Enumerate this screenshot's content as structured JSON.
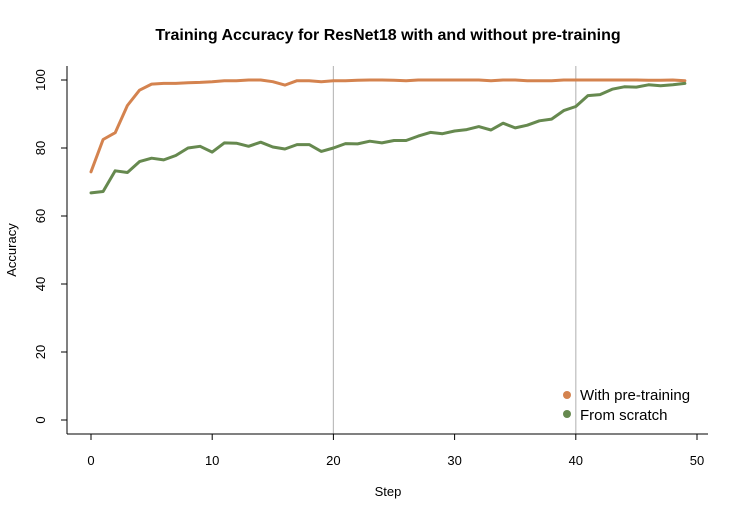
{
  "chart_data": {
    "type": "line",
    "title": "Training Accuracy for ResNet18 with and without pre-training",
    "xlabel": "Step",
    "ylabel": "Accuracy",
    "xlim": [
      0,
      50
    ],
    "ylim": [
      0,
      100
    ],
    "xticks": [
      0,
      10,
      20,
      30,
      40,
      50
    ],
    "yticks": [
      0,
      20,
      40,
      60,
      80,
      100
    ],
    "vertical_reference_lines": [
      20,
      40
    ],
    "grid": false,
    "legend_position": "bottom-right",
    "x": [
      0,
      1,
      2,
      3,
      4,
      5,
      6,
      7,
      8,
      9,
      10,
      11,
      12,
      13,
      14,
      15,
      16,
      17,
      18,
      19,
      20,
      21,
      22,
      23,
      24,
      25,
      26,
      27,
      28,
      29,
      30,
      31,
      32,
      33,
      34,
      35,
      36,
      37,
      38,
      39,
      40,
      41,
      42,
      43,
      44,
      45,
      46,
      47,
      48,
      49
    ],
    "series": [
      {
        "name": "With pre-training",
        "color": "#d4834f",
        "values": [
          73.0,
          82.5,
          84.5,
          92.5,
          97.0,
          98.8,
          99.0,
          99.0,
          99.2,
          99.3,
          99.5,
          99.8,
          99.8,
          100.0,
          100.0,
          99.5,
          98.5,
          99.8,
          99.8,
          99.5,
          99.8,
          99.8,
          99.9,
          100.0,
          100.0,
          99.9,
          99.8,
          100.0,
          100.0,
          100.0,
          100.0,
          100.0,
          100.0,
          99.8,
          100.0,
          100.0,
          99.8,
          99.8,
          99.8,
          100.0,
          100.0,
          100.0,
          100.0,
          100.0,
          100.0,
          100.0,
          99.9,
          99.9,
          100.0,
          99.8
        ]
      },
      {
        "name": "From scratch",
        "color": "#66894f",
        "values": [
          66.8,
          67.2,
          73.3,
          72.8,
          76.0,
          77.0,
          76.5,
          77.8,
          80.0,
          80.5,
          78.8,
          81.5,
          81.4,
          80.5,
          81.7,
          80.3,
          79.7,
          81.0,
          81.0,
          79.0,
          80.0,
          81.3,
          81.2,
          82.0,
          81.5,
          82.2,
          82.2,
          83.5,
          84.6,
          84.2,
          85.0,
          85.4,
          86.3,
          85.3,
          87.3,
          85.9,
          86.7,
          88.0,
          88.5,
          91.0,
          92.2,
          95.4,
          95.7,
          97.3,
          98.0,
          97.9,
          98.6,
          98.3,
          98.6,
          99.0
        ]
      }
    ]
  }
}
